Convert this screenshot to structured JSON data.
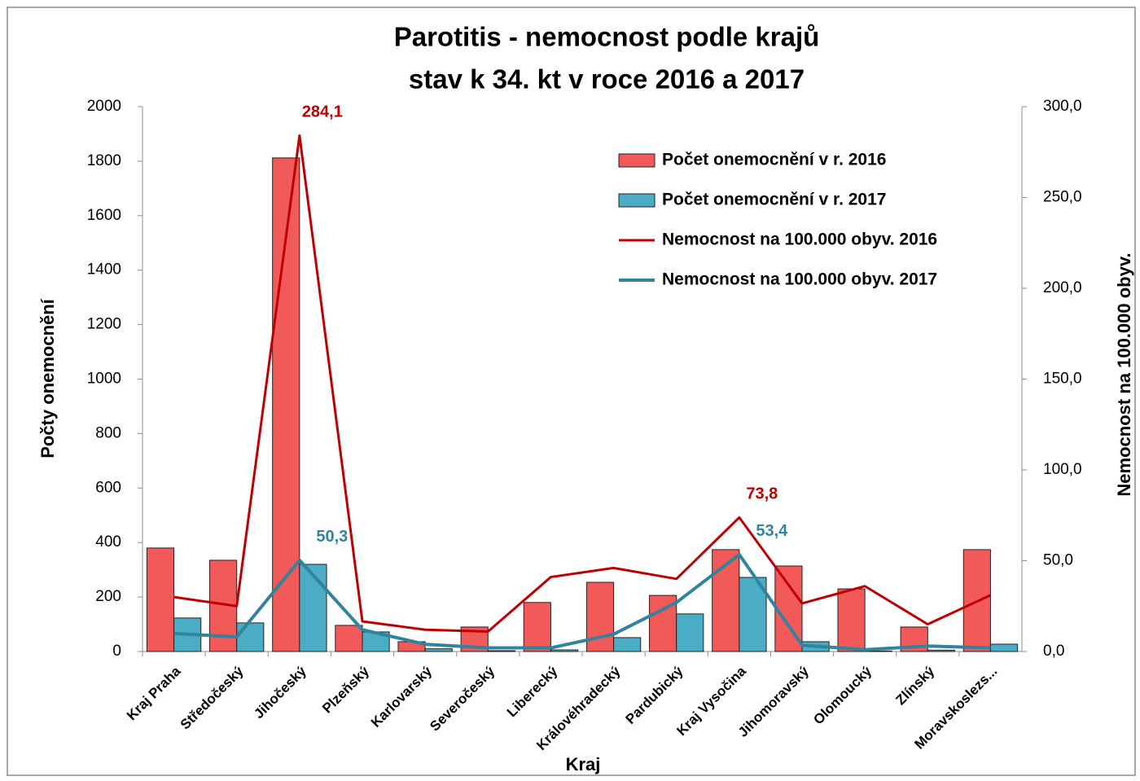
{
  "chart_data": {
    "type": "bar-line",
    "title": [
      "Parotitis - nemocnost podle krajů",
      "stav k 34. kt v roce 2016 a 2017"
    ],
    "x_label": "Kraj",
    "y_label": "Počty onemocnění",
    "y2_label": "Nemocnost na 100.000 obyv.",
    "categories": [
      "Kraj Praha",
      "Středočeský",
      "Jihočeský",
      "Plzeňský",
      "Karlovarský",
      "Severočeský",
      "Liberecký",
      "Královéhradecký",
      "Pardubický",
      "Kraj Vysočina",
      "Jihomoravský",
      "Olomoucký",
      "Zlínský",
      "Moravskoslezs..."
    ],
    "ylim": [
      0,
      2000
    ],
    "yticks": [
      0,
      200,
      400,
      600,
      800,
      1000,
      1200,
      1400,
      1600,
      1800,
      2000
    ],
    "y2lim": [
      0,
      300
    ],
    "y2ticks": [
      {
        "value": 0,
        "label": "0,0"
      },
      {
        "value": 50,
        "label": "50,0"
      },
      {
        "value": 100,
        "label": "100,0"
      },
      {
        "value": 150,
        "label": "150,0"
      },
      {
        "value": 200,
        "label": "200,0"
      },
      {
        "value": 250,
        "label": "250,0"
      },
      {
        "value": 300,
        "label": "300,0"
      }
    ],
    "legend": "upper right",
    "series": [
      {
        "name": "Počet onemocnění v r. 2016",
        "type": "bar",
        "axis": "y",
        "color": "#f25a5a",
        "values": [
          380,
          335,
          1812,
          96,
          36,
          90,
          180,
          254,
          206,
          374,
          314,
          230,
          90,
          374
        ]
      },
      {
        "name": "Počet onemocnění v r. 2017",
        "type": "bar",
        "axis": "y",
        "color": "#4bacc6",
        "values": [
          123,
          105,
          320,
          72,
          10,
          3,
          6,
          51,
          138,
          272,
          36,
          2,
          5,
          27
        ]
      },
      {
        "name": "Nemocnost na 100.000 obyv. 2016",
        "type": "line",
        "axis": "y2",
        "color": "#c00000",
        "values": [
          30,
          25,
          284.1,
          16.6,
          12,
          11,
          41,
          46,
          40,
          73.8,
          26.5,
          36,
          15,
          31
        ],
        "value_labels": [
          null,
          null,
          "284,1",
          null,
          null,
          null,
          null,
          null,
          null,
          "73,8",
          null,
          null,
          null,
          null
        ]
      },
      {
        "name": "Nemocnost na 100.000 obyv. 2017",
        "type": "line",
        "axis": "y2",
        "color": "#31849b",
        "values": [
          10,
          8,
          50.3,
          12,
          4,
          2,
          2,
          9.5,
          27,
          53.4,
          3.5,
          1,
          3,
          2
        ],
        "value_labels": [
          null,
          null,
          "50,3",
          null,
          null,
          null,
          null,
          null,
          null,
          "53,4",
          null,
          null,
          null,
          null
        ]
      }
    ]
  }
}
